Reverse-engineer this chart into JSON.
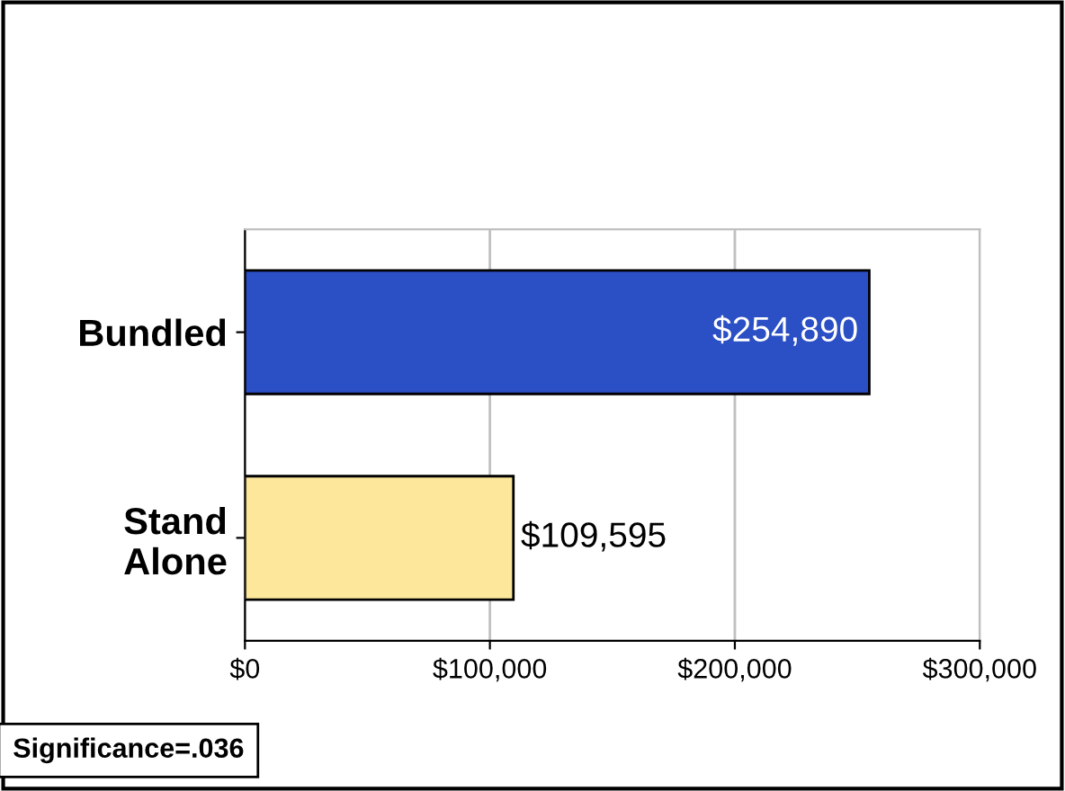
{
  "chart_data": {
    "type": "bar",
    "orientation": "horizontal",
    "categories": [
      "Bundled",
      "Stand\nAlone"
    ],
    "values": [
      254890,
      109595
    ],
    "colors": [
      "#2b4fc4",
      "#fde79a"
    ],
    "value_labels": [
      "$254,890",
      "$109,595"
    ],
    "xlim": [
      0,
      300000
    ],
    "xticks": [
      {
        "value": 0,
        "label": "$0"
      },
      {
        "value": 100000,
        "label": "$100,000"
      },
      {
        "value": 200000,
        "label": "$200,000"
      },
      {
        "value": 300000,
        "label": "$300,000"
      }
    ],
    "grid": "x",
    "annotations": [
      "Significance=.036"
    ]
  }
}
